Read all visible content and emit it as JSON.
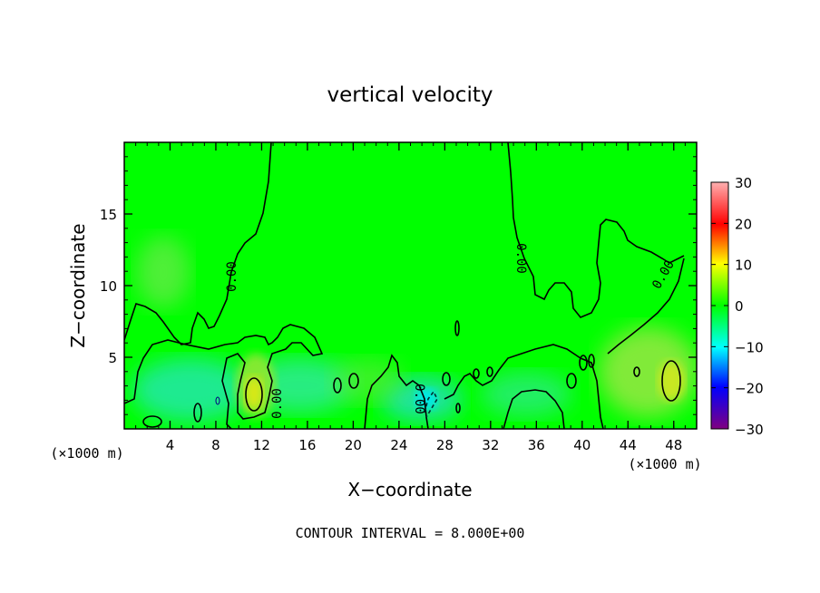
{
  "chart_data": {
    "type": "heatmap",
    "title": "vertical velocity",
    "xlabel": "X−coordinate",
    "ylabel": "Z−coordinate",
    "x_unit_left": "(×1000 m)",
    "x_unit_right": "(×1000 m)",
    "xlim": [
      0,
      50
    ],
    "ylim": [
      0,
      20
    ],
    "x_ticks": [
      4,
      8,
      12,
      16,
      20,
      24,
      28,
      32,
      36,
      40,
      44,
      48
    ],
    "y_ticks": [
      5,
      10,
      15
    ],
    "colorbar": {
      "min": -30,
      "max": 30,
      "ticks": [
        30,
        20,
        10,
        0,
        -10,
        -20,
        -30
      ],
      "tick_labels": [
        "30",
        "20",
        "10",
        "0",
        "−10",
        "−20",
        "−30"
      ],
      "colors": [
        "#800080",
        "#0000ff",
        "#00ffff",
        "#00ff00",
        "#ffff00",
        "#ff0000",
        "#ffb0b0"
      ]
    },
    "background_color": "#00ff00",
    "contour_labels": [
      "0.00",
      "0.00",
      "0.00",
      "0.00",
      "0.00"
    ],
    "footer": "CONTOUR INTERVAL = 8.000E+00"
  }
}
